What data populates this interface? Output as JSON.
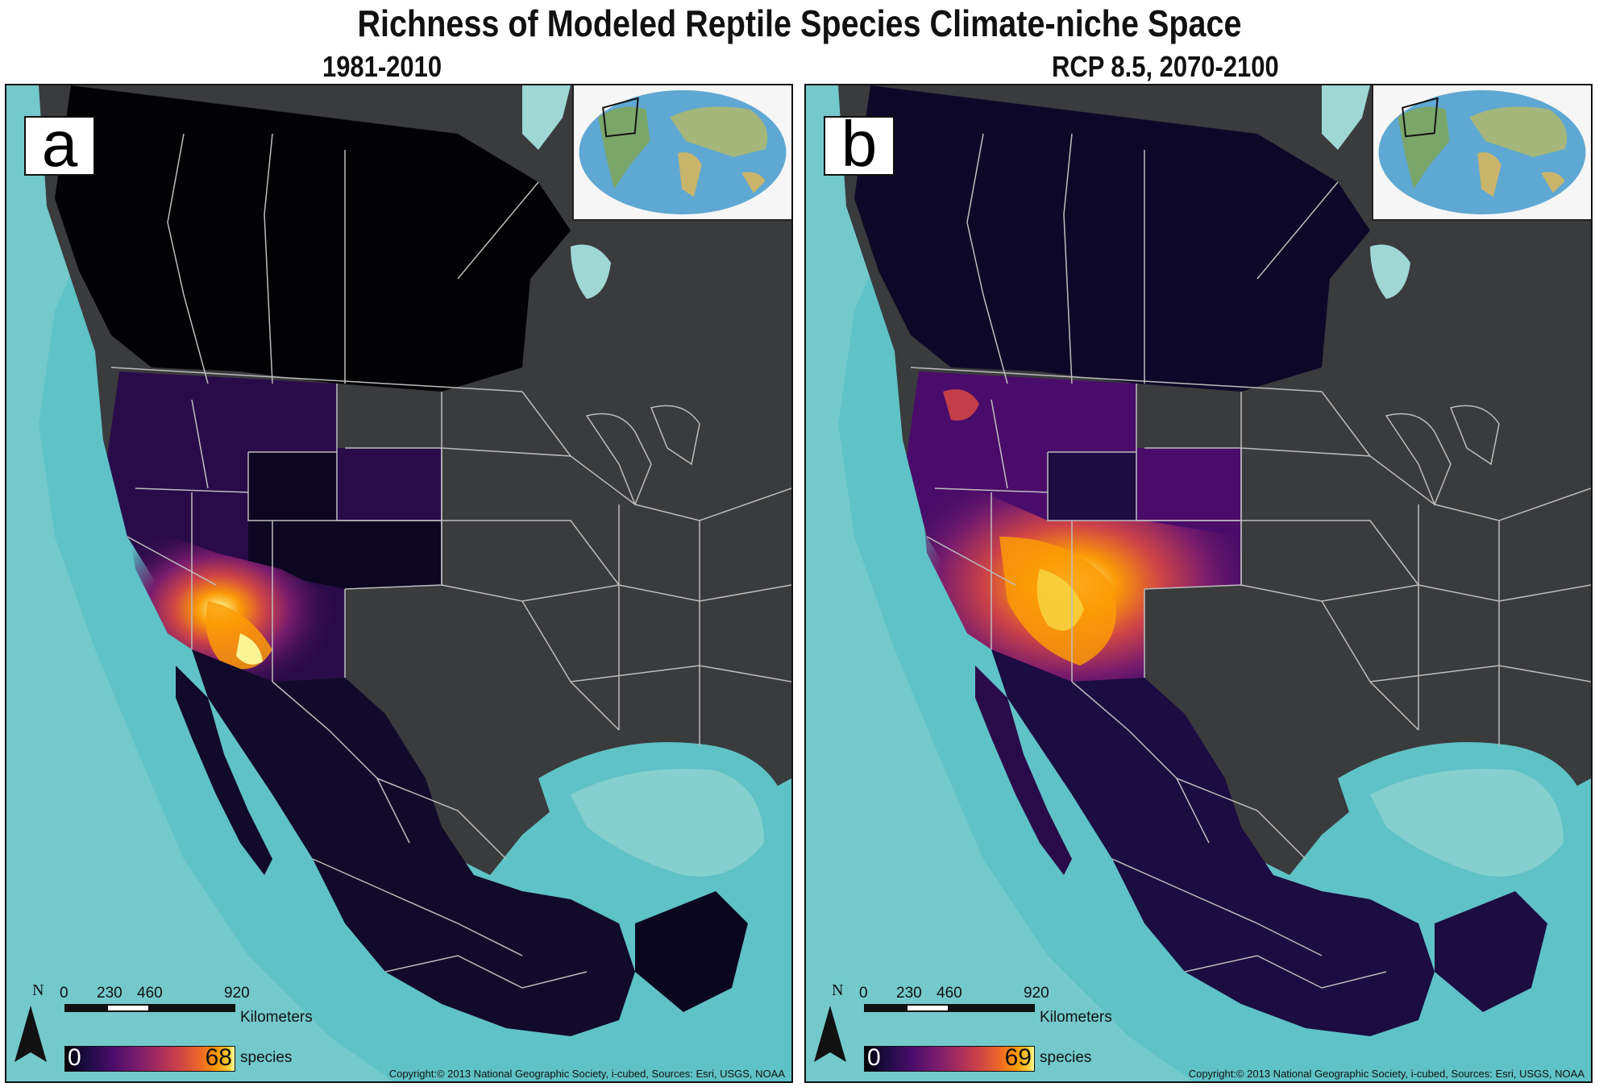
{
  "figure": {
    "title": "Richness of Modeled Reptile Species Climate-niche Space"
  },
  "panels": [
    {
      "id": "a",
      "letter": "a",
      "subtitle": "1981-2010",
      "scale_ticks": [
        "0",
        "230",
        "460",
        "920"
      ],
      "scale_unit": "Kilometers",
      "legend_min": "0",
      "legend_max": "68",
      "legend_unit": "species",
      "north_label": "N",
      "copyright": "Copyright:© 2013 National Geographic Society, i-cubed, Sources: Esri, USGS, NOAA"
    },
    {
      "id": "b",
      "letter": "b",
      "subtitle": "RCP 8.5, 2070-2100",
      "scale_ticks": [
        "0",
        "230",
        "460",
        "920"
      ],
      "scale_unit": "Kilometers",
      "legend_min": "0",
      "legend_max": "69",
      "legend_unit": "species",
      "north_label": "N",
      "copyright": "Copyright:© 2013 National Geographic Society, i-cubed, Sources: Esri, USGS, NOAA"
    }
  ],
  "legend_colormap": [
    "#000004",
    "#1b0c41",
    "#4a0c6b",
    "#781c6d",
    "#a52c60",
    "#cf4446",
    "#ed6925",
    "#fb9b06",
    "#f7d13d",
    "#fcffa4"
  ],
  "colors": {
    "ocean": "#5fc2c6",
    "shelf": "#9fd7d5",
    "land_outside": "#3a3b3d",
    "boundary": "#bdbdbd"
  }
}
